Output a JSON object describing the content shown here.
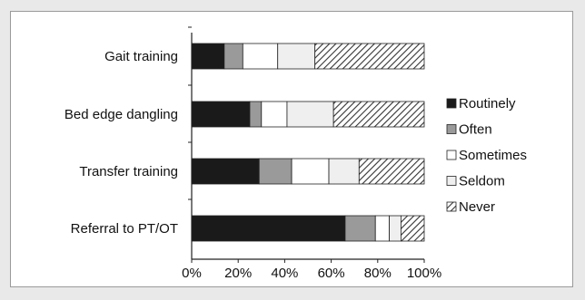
{
  "chart_data": {
    "type": "bar",
    "orientation": "horizontal",
    "stacked": true,
    "title": "",
    "xlabel": "",
    "ylabel": "",
    "xlim": [
      0,
      100
    ],
    "x_ticks": [
      "0%",
      "20%",
      "40%",
      "60%",
      "80%",
      "100%"
    ],
    "categories": [
      "Gait training",
      "Bed edge dangling",
      "Transfer training",
      "Referral to PT/OT"
    ],
    "series": [
      {
        "name": "Routinely",
        "values": [
          14,
          25,
          29,
          66
        ],
        "fill": "#1a1a1a",
        "pattern": "solid"
      },
      {
        "name": "Often",
        "values": [
          8,
          5,
          14,
          13
        ],
        "fill": "#9a9a9a",
        "pattern": "solid"
      },
      {
        "name": "Sometimes",
        "values": [
          15,
          11,
          16,
          6
        ],
        "fill": "#ffffff",
        "pattern": "solid"
      },
      {
        "name": "Seldom",
        "values": [
          16,
          20,
          13,
          5
        ],
        "fill": "#efefef",
        "pattern": "solid"
      },
      {
        "name": "Never",
        "values": [
          47,
          39,
          28,
          10
        ],
        "fill": "#ffffff",
        "pattern": "hatch"
      }
    ],
    "legend_position": "right",
    "grid": false
  }
}
